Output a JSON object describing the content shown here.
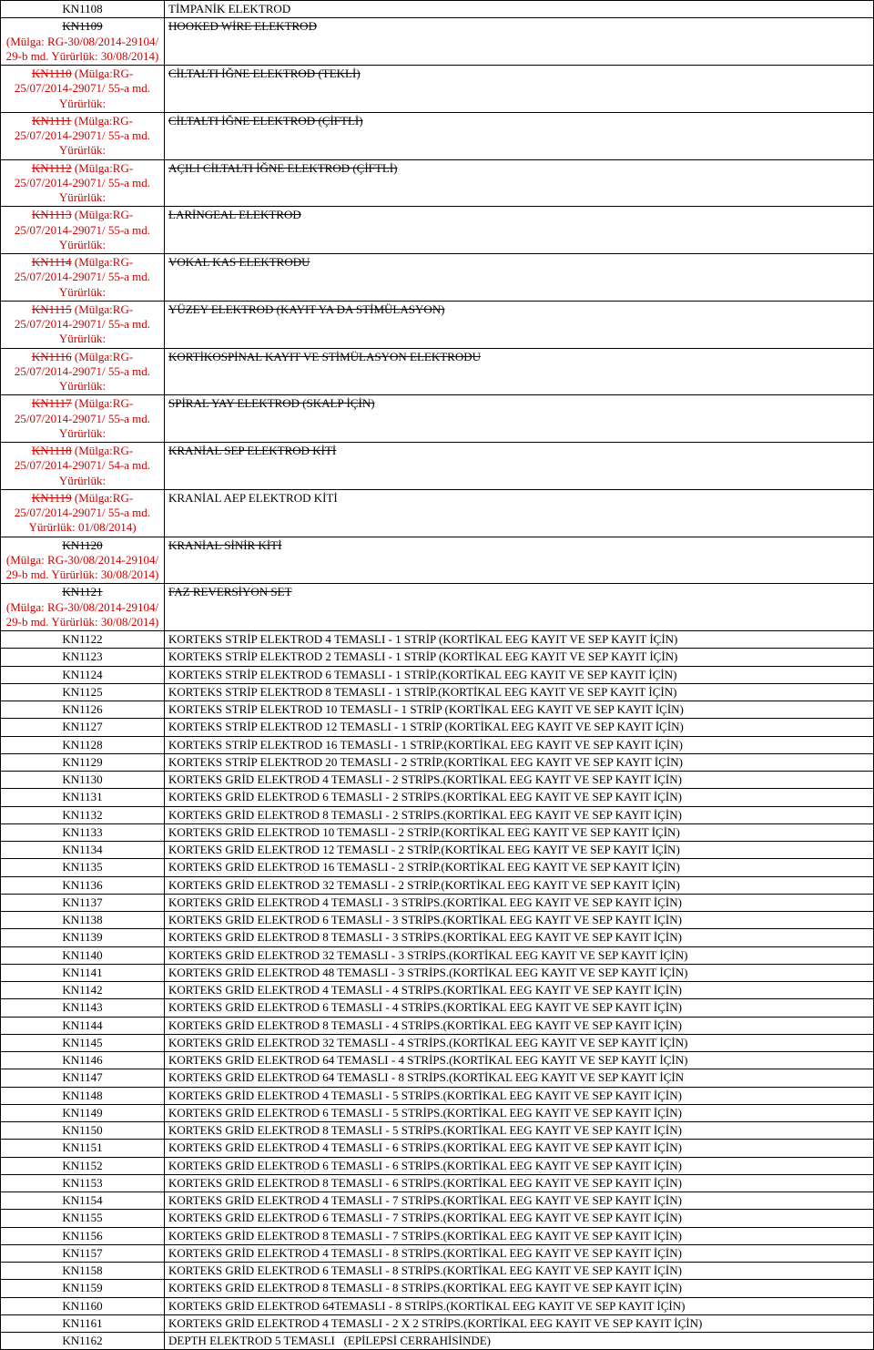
{
  "rows": [
    {
      "code_html": "KN1108",
      "desc_html": "TİMPANİK ELEKTROD"
    },
    {
      "code_html": "<span class='strike'>KN1109</span><br><span class='red'>(Mülga: RG-30/08/2014-29104/ 29-b md. Yürürlük: 30/08/2014)</span>",
      "desc_html": "<span class='strike'>HOOKED WİRE ELEKTROD</span>"
    },
    {
      "code_html": "<span class='red'><span class='strike'>KN1110</span> (Mülga:RG-25/07/2014-29071/ 55-a md. Yürürlük:</span>",
      "desc_html": "<span class='strike'>CİLTALTI İĞNE ELEKTROD (TEKLİ)</span>"
    },
    {
      "code_html": "<span class='red'><span class='strike'>KN1111</span> (Mülga:RG-25/07/2014-29071/ 55-a md. Yürürlük:</span>",
      "desc_html": "<span class='strike'>CİLTALTI İĞNE ELEKTROD (ÇİFTLİ)</span>"
    },
    {
      "code_html": "<span class='red'><span class='strike'>KN1112</span> (Mülga:RG-25/07/2014-29071/ 55-a md. Yürürlük:</span>",
      "desc_html": "<span class='strike'>AÇILI CİLTALTI İĞNE ELEKTROD (ÇİFTLİ)</span>"
    },
    {
      "code_html": "<span class='red'><span class='strike'>KN1113</span> (Mülga:RG-25/07/2014-29071/ 55-a md. Yürürlük:</span>",
      "desc_html": "<span class='strike'>LARİNGEAL ELEKTROD</span>"
    },
    {
      "code_html": "<span class='red'><span class='strike'>KN1114</span> (Mülga:RG-25/07/2014-29071/ 55-a md. Yürürlük:</span>",
      "desc_html": "<span class='strike'>VOKAL KAS ELEKTRODU</span>"
    },
    {
      "code_html": "<span class='red'><span class='strike'>KN1115</span> (Mülga:RG-25/07/2014-29071/ 55-a md. Yürürlük:</span>",
      "desc_html": "<span class='strike'>YÜZEY ELEKTROD (KAYIT YA DA STİMÜLASYON)</span>"
    },
    {
      "code_html": "<span class='red'><span class='strike'>KN1116</span> (Mülga:RG-25/07/2014-29071/ 55-a md. Yürürlük:</span>",
      "desc_html": "<span class='strike'>KORTİKOSPİNAL KAYIT VE STİMÜLASYON ELEKTRODU</span>"
    },
    {
      "code_html": "<span class='red'><span class='strike'>KN1117</span> (Mülga:RG-25/07/2014-29071/ 55-a md. Yürürlük:</span>",
      "desc_html": "<span class='strike'>SPİRAL YAY ELEKTROD (SKALP İÇİN)</span>"
    },
    {
      "code_html": "<span class='red'><span class='strike'>KN1118</span> (Mülga:RG-25/07/2014-29071/ 54-a md. Yürürlük:</span>",
      "desc_html": "<span class='strike'>KRANİAL SEP ELEKTROD KİTİ</span>"
    },
    {
      "code_html": "<span class='red'><span class='strike'>KN1119</span> (Mülga:RG-25/07/2014-29071/ 55-a md. Yürürlük: 01/08/2014)</span>",
      "desc_html": "KRANİAL AEP ELEKTROD KİTİ"
    },
    {
      "code_html": "<span class='strike'>KN1120</span><br><span class='red'>(Mülga: RG-30/08/2014-29104/ 29-b md. Yürürlük: 30/08/2014)</span>",
      "desc_html": "<span class='strike'>KRANİAL SİNİR KİTİ</span>"
    },
    {
      "code_html": "<span class='strike'>KN1121</span><br><span class='red'>(Mülga: RG-30/08/2014-29104/ 29-b md. Yürürlük: 30/08/2014)</span>",
      "desc_html": "<span class='strike'>FAZ REVERSİYON SET</span>"
    },
    {
      "code_html": "KN1122",
      "desc_html": "KORTEKS STRİP ELEKTROD 4 TEMASLI - 1 STRİP (KORTİKAL EEG KAYIT VE SEP KAYIT İÇİN)"
    },
    {
      "code_html": "KN1123",
      "desc_html": "KORTEKS STRİP ELEKTROD 2 TEMASLI - 1 STRİP (KORTİKAL EEG KAYIT VE SEP KAYIT İÇİN)"
    },
    {
      "code_html": "KN1124",
      "desc_html": "KORTEKS STRİP ELEKTROD 6 TEMASLI - 1 STRİP.(KORTİKAL EEG KAYIT VE SEP KAYIT İÇİN)"
    },
    {
      "code_html": "KN1125",
      "desc_html": "KORTEKS STRİP ELEKTROD 8 TEMASLI - 1 STRİP.(KORTİKAL EEG KAYIT VE SEP KAYIT İÇİN)"
    },
    {
      "code_html": "KN1126",
      "desc_html": "KORTEKS STRİP ELEKTROD 10 TEMASLI - 1 STRİP (KORTİKAL EEG KAYIT VE SEP KAYIT İÇİN)"
    },
    {
      "code_html": "KN1127",
      "desc_html": "KORTEKS STRİP ELEKTROD 12 TEMASLI - 1 STRİP (KORTİKAL EEG KAYIT VE SEP KAYIT İÇİN)"
    },
    {
      "code_html": "KN1128",
      "desc_html": "KORTEKS STRİP ELEKTROD 16 TEMASLI - 1 STRİP.(KORTİKAL EEG KAYIT VE SEP KAYIT İÇİN)"
    },
    {
      "code_html": "KN1129",
      "desc_html": "KORTEKS STRİP ELEKTROD 20 TEMASLI - 2 STRİP.(KORTİKAL EEG KAYIT VE SEP KAYIT İÇİN)"
    },
    {
      "code_html": "KN1130",
      "desc_html": "KORTEKS GRİD ELEKTROD 4 TEMASLI - 2 STRİPS.(KORTİKAL EEG KAYIT VE SEP KAYIT İÇİN)"
    },
    {
      "code_html": "KN1131",
      "desc_html": "KORTEKS GRİD ELEKTROD 6 TEMASLI - 2 STRİPS.(KORTİKAL EEG KAYIT VE SEP KAYIT İÇİN)"
    },
    {
      "code_html": "KN1132",
      "desc_html": "KORTEKS GRİD ELEKTROD 8 TEMASLI - 2 STRİPS.(KORTİKAL EEG KAYIT VE SEP KAYIT İÇİN)"
    },
    {
      "code_html": "KN1133",
      "desc_html": "KORTEKS GRİD ELEKTROD 10 TEMASLI - 2 STRİP.(KORTİKAL EEG KAYIT VE SEP KAYIT İÇİN)"
    },
    {
      "code_html": "KN1134",
      "desc_html": "KORTEKS GRİD ELEKTROD 12 TEMASLI - 2 STRİP.(KORTİKAL EEG KAYIT VE SEP KAYIT İÇİN)"
    },
    {
      "code_html": "KN1135",
      "desc_html": "KORTEKS GRİD ELEKTROD 16 TEMASLI - 2 STRİP.(KORTİKAL EEG KAYIT VE SEP KAYIT İÇİN)"
    },
    {
      "code_html": "KN1136",
      "desc_html": "KORTEKS GRİD ELEKTROD 32 TEMASLI - 2 STRİP.(KORTİKAL EEG KAYIT VE SEP KAYIT İÇİN)"
    },
    {
      "code_html": "KN1137",
      "desc_html": "KORTEKS GRİD ELEKTROD 4 TEMASLI - 3 STRİPS.(KORTİKAL EEG KAYIT VE SEP KAYIT İÇİN)"
    },
    {
      "code_html": "KN1138",
      "desc_html": "KORTEKS GRİD ELEKTROD 6 TEMASLI - 3 STRİPS.(KORTİKAL EEG KAYIT VE SEP KAYIT İÇİN)"
    },
    {
      "code_html": "KN1139",
      "desc_html": "KORTEKS GRİD ELEKTROD 8 TEMASLI - 3 STRİPS.(KORTİKAL EEG KAYIT VE SEP KAYIT İÇİN)"
    },
    {
      "code_html": "KN1140",
      "desc_html": "KORTEKS GRİD ELEKTROD 32 TEMASLI - 3 STRİPS.(KORTİKAL EEG KAYIT VE SEP KAYIT İÇİN)"
    },
    {
      "code_html": "KN1141",
      "desc_html": "KORTEKS GRİD ELEKTROD 48 TEMASLI - 3 STRİPS.(KORTİKAL EEG KAYIT VE SEP KAYIT İÇİN)"
    },
    {
      "code_html": "KN1142",
      "desc_html": "KORTEKS GRİD ELEKTROD 4 TEMASLI - 4 STRİPS.(KORTİKAL EEG KAYIT VE SEP KAYIT İÇİN)"
    },
    {
      "code_html": "KN1143",
      "desc_html": "KORTEKS GRİD ELEKTROD 6 TEMASLI - 4 STRİPS.(KORTİKAL EEG KAYIT VE SEP KAYIT İÇİN)"
    },
    {
      "code_html": "KN1144",
      "desc_html": "KORTEKS GRİD ELEKTROD 8 TEMASLI - 4 STRİPS.(KORTİKAL EEG KAYIT VE SEP KAYIT İÇİN)"
    },
    {
      "code_html": "KN1145",
      "desc_html": "KORTEKS GRİD ELEKTROD 32 TEMASLI - 4 STRİPS.(KORTİKAL EEG KAYIT VE SEP KAYIT İÇİN)"
    },
    {
      "code_html": "KN1146",
      "desc_html": "KORTEKS GRİD ELEKTROD 64 TEMASLI - 4 STRİPS.(KORTİKAL EEG KAYIT VE SEP KAYIT İÇİN)"
    },
    {
      "code_html": "KN1147",
      "desc_html": "KORTEKS GRİD ELEKTROD 64 TEMASLI - 8 STRİPS.(KORTİKAL EEG KAYIT VE SEP KAYIT İÇİN"
    },
    {
      "code_html": "KN1148",
      "desc_html": "KORTEKS GRİD ELEKTROD 4 TEMASLI - 5 STRİPS.(KORTİKAL EEG KAYIT VE SEP KAYIT İÇİN)"
    },
    {
      "code_html": "KN1149",
      "desc_html": "KORTEKS GRİD ELEKTROD 6 TEMASLI - 5 STRİPS.(KORTİKAL EEG KAYIT VE SEP KAYIT İÇİN)"
    },
    {
      "code_html": "KN1150",
      "desc_html": "KORTEKS GRİD ELEKTROD 8 TEMASLI - 5 STRİPS.(KORTİKAL EEG KAYIT VE SEP KAYIT İÇİN)"
    },
    {
      "code_html": "KN1151",
      "desc_html": "KORTEKS GRİD ELEKTROD 4 TEMASLI - 6 STRİPS.(KORTİKAL EEG KAYIT VE SEP KAYIT İÇİN)"
    },
    {
      "code_html": "KN1152",
      "desc_html": "KORTEKS GRİD ELEKTROD 6 TEMASLI - 6 STRİPS.(KORTİKAL EEG KAYIT VE SEP KAYIT İÇİN)"
    },
    {
      "code_html": "KN1153",
      "desc_html": "KORTEKS GRİD ELEKTROD 8 TEMASLI - 6 STRİPS.(KORTİKAL EEG KAYIT VE SEP KAYIT İÇİN)"
    },
    {
      "code_html": "KN1154",
      "desc_html": "KORTEKS GRİD ELEKTROD 4 TEMASLI - 7 STRİPS.(KORTİKAL EEG KAYIT VE SEP KAYIT İÇİN)"
    },
    {
      "code_html": "KN1155",
      "desc_html": "KORTEKS GRİD ELEKTROD 6 TEMASLI - 7 STRİPS.(KORTİKAL EEG KAYIT VE SEP KAYIT İÇİN)"
    },
    {
      "code_html": "KN1156",
      "desc_html": "KORTEKS GRİD ELEKTROD 8 TEMASLI - 7 STRİPS.(KORTİKAL EEG KAYIT VE SEP KAYIT İÇİN)"
    },
    {
      "code_html": "KN1157",
      "desc_html": "KORTEKS GRİD ELEKTROD 4 TEMASLI - 8 STRİPS.(KORTİKAL EEG KAYIT VE SEP KAYIT İÇİN)"
    },
    {
      "code_html": "KN1158",
      "desc_html": "KORTEKS GRİD ELEKTROD 6 TEMASLI - 8 STRİPS.(KORTİKAL EEG KAYIT VE SEP KAYIT İÇİN)"
    },
    {
      "code_html": "KN1159",
      "desc_html": "KORTEKS GRİD ELEKTROD 8 TEMASLI - 8 STRİPS.(KORTİKAL EEG KAYIT VE SEP KAYIT İÇİN)"
    },
    {
      "code_html": "KN1160",
      "desc_html": "KORTEKS GRİD ELEKTROD 64TEMASLI - 8 STRİPS.(KORTİKAL EEG KAYIT VE SEP KAYIT İÇİN)"
    },
    {
      "code_html": "KN1161",
      "desc_html": "KORTEKS GRİD ELEKTROD 4 TEMASLI - 2 X 2 STRİPS.(KORTİKAL EEG KAYIT VE SEP KAYIT İÇİN)"
    },
    {
      "code_html": "KN1162",
      "desc_html": "DEPTH ELEKTROD 5 TEMASLI&nbsp;&nbsp;&nbsp;(EPİLEPSİ CERRAHİSİNDE)"
    }
  ]
}
